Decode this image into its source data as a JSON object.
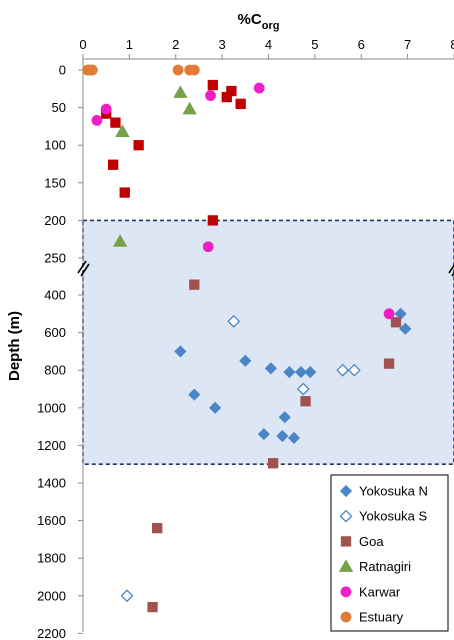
{
  "chart_data": {
    "type": "scatter",
    "x_axis": {
      "title_main": "%C",
      "title_sub": "org",
      "position": "top",
      "range": [
        0,
        8
      ],
      "ticks": [
        "0",
        "1",
        "2",
        "3",
        "4",
        "5",
        "6",
        "7",
        "8"
      ]
    },
    "y_axis": {
      "title": "Depth (m)",
      "reversed": true,
      "broken": true,
      "upper_segment": {
        "range": [
          0,
          275
        ],
        "ticks": [
          "0",
          "50",
          "100",
          "150",
          "200",
          "250"
        ]
      },
      "lower_segment": {
        "range": [
          300,
          2200
        ],
        "ticks": [
          "400",
          "600",
          "800",
          "1000",
          "1200",
          "1400",
          "1600",
          "1800",
          "2000",
          "2200"
        ]
      }
    },
    "grid": false,
    "shaded_region": {
      "depth_from": 200,
      "depth_to": 1300,
      "fill": "#dce6f4",
      "border": "#1f3864"
    },
    "legend_position": "bottom-right",
    "series": [
      {
        "name": "Yokosuka N",
        "marker": "diamond",
        "color": "#4a86c5",
        "filled": true,
        "points": [
          [
            2.1,
            700
          ],
          [
            2.4,
            930
          ],
          [
            2.85,
            1000
          ],
          [
            3.5,
            750
          ],
          [
            3.9,
            1140
          ],
          [
            4.05,
            790
          ],
          [
            4.3,
            1150
          ],
          [
            4.35,
            1050
          ],
          [
            4.45,
            810
          ],
          [
            4.55,
            1160
          ],
          [
            4.7,
            810
          ],
          [
            4.9,
            810
          ],
          [
            6.85,
            500
          ],
          [
            6.95,
            580
          ]
        ]
      },
      {
        "name": "Yokosuka S",
        "marker": "diamond",
        "color": "#4a86c5",
        "filled": false,
        "points": [
          [
            3.25,
            540
          ],
          [
            4.75,
            900
          ],
          [
            5.6,
            800
          ],
          [
            5.85,
            800
          ],
          [
            0.95,
            2000
          ]
        ]
      },
      {
        "name": "Goa",
        "marker": "square",
        "color": "#a0524f",
        "filled": true,
        "points": [
          [
            2.4,
            345
          ],
          [
            4.8,
            965
          ],
          [
            4.1,
            1295
          ],
          [
            1.6,
            1640
          ],
          [
            1.5,
            2060
          ],
          [
            6.6,
            765
          ],
          [
            6.75,
            545
          ]
        ]
      },
      {
        "name": "Goa",
        "marker": "square",
        "color": "#c00000",
        "filled": true,
        "legend": false,
        "points": [
          [
            2.8,
            20
          ],
          [
            3.2,
            28
          ],
          [
            3.1,
            36
          ],
          [
            3.4,
            45
          ],
          [
            0.5,
            58
          ],
          [
            0.7,
            70
          ],
          [
            1.2,
            100
          ],
          [
            0.65,
            126
          ],
          [
            0.9,
            163
          ],
          [
            2.8,
            200
          ]
        ]
      },
      {
        "name": "Ratnagiri",
        "marker": "triangle",
        "color": "#77a04a",
        "filled": true,
        "points": [
          [
            2.1,
            30
          ],
          [
            2.3,
            52
          ],
          [
            0.85,
            82
          ],
          [
            0.8,
            228
          ]
        ]
      },
      {
        "name": "Karwar",
        "marker": "circle",
        "color": "#ee1fc5",
        "filled": true,
        "points": [
          [
            0.5,
            52
          ],
          [
            0.3,
            67
          ],
          [
            2.75,
            34
          ],
          [
            3.8,
            24
          ],
          [
            2.7,
            235
          ],
          [
            6.6,
            500
          ]
        ]
      },
      {
        "name": "Estuary",
        "marker": "circle",
        "color": "#e07b39",
        "filled": true,
        "points": [
          [
            0.1,
            0
          ],
          [
            0.15,
            0
          ],
          [
            0.2,
            0
          ],
          [
            2.05,
            0
          ],
          [
            2.3,
            0
          ],
          [
            2.4,
            0
          ]
        ]
      }
    ]
  }
}
